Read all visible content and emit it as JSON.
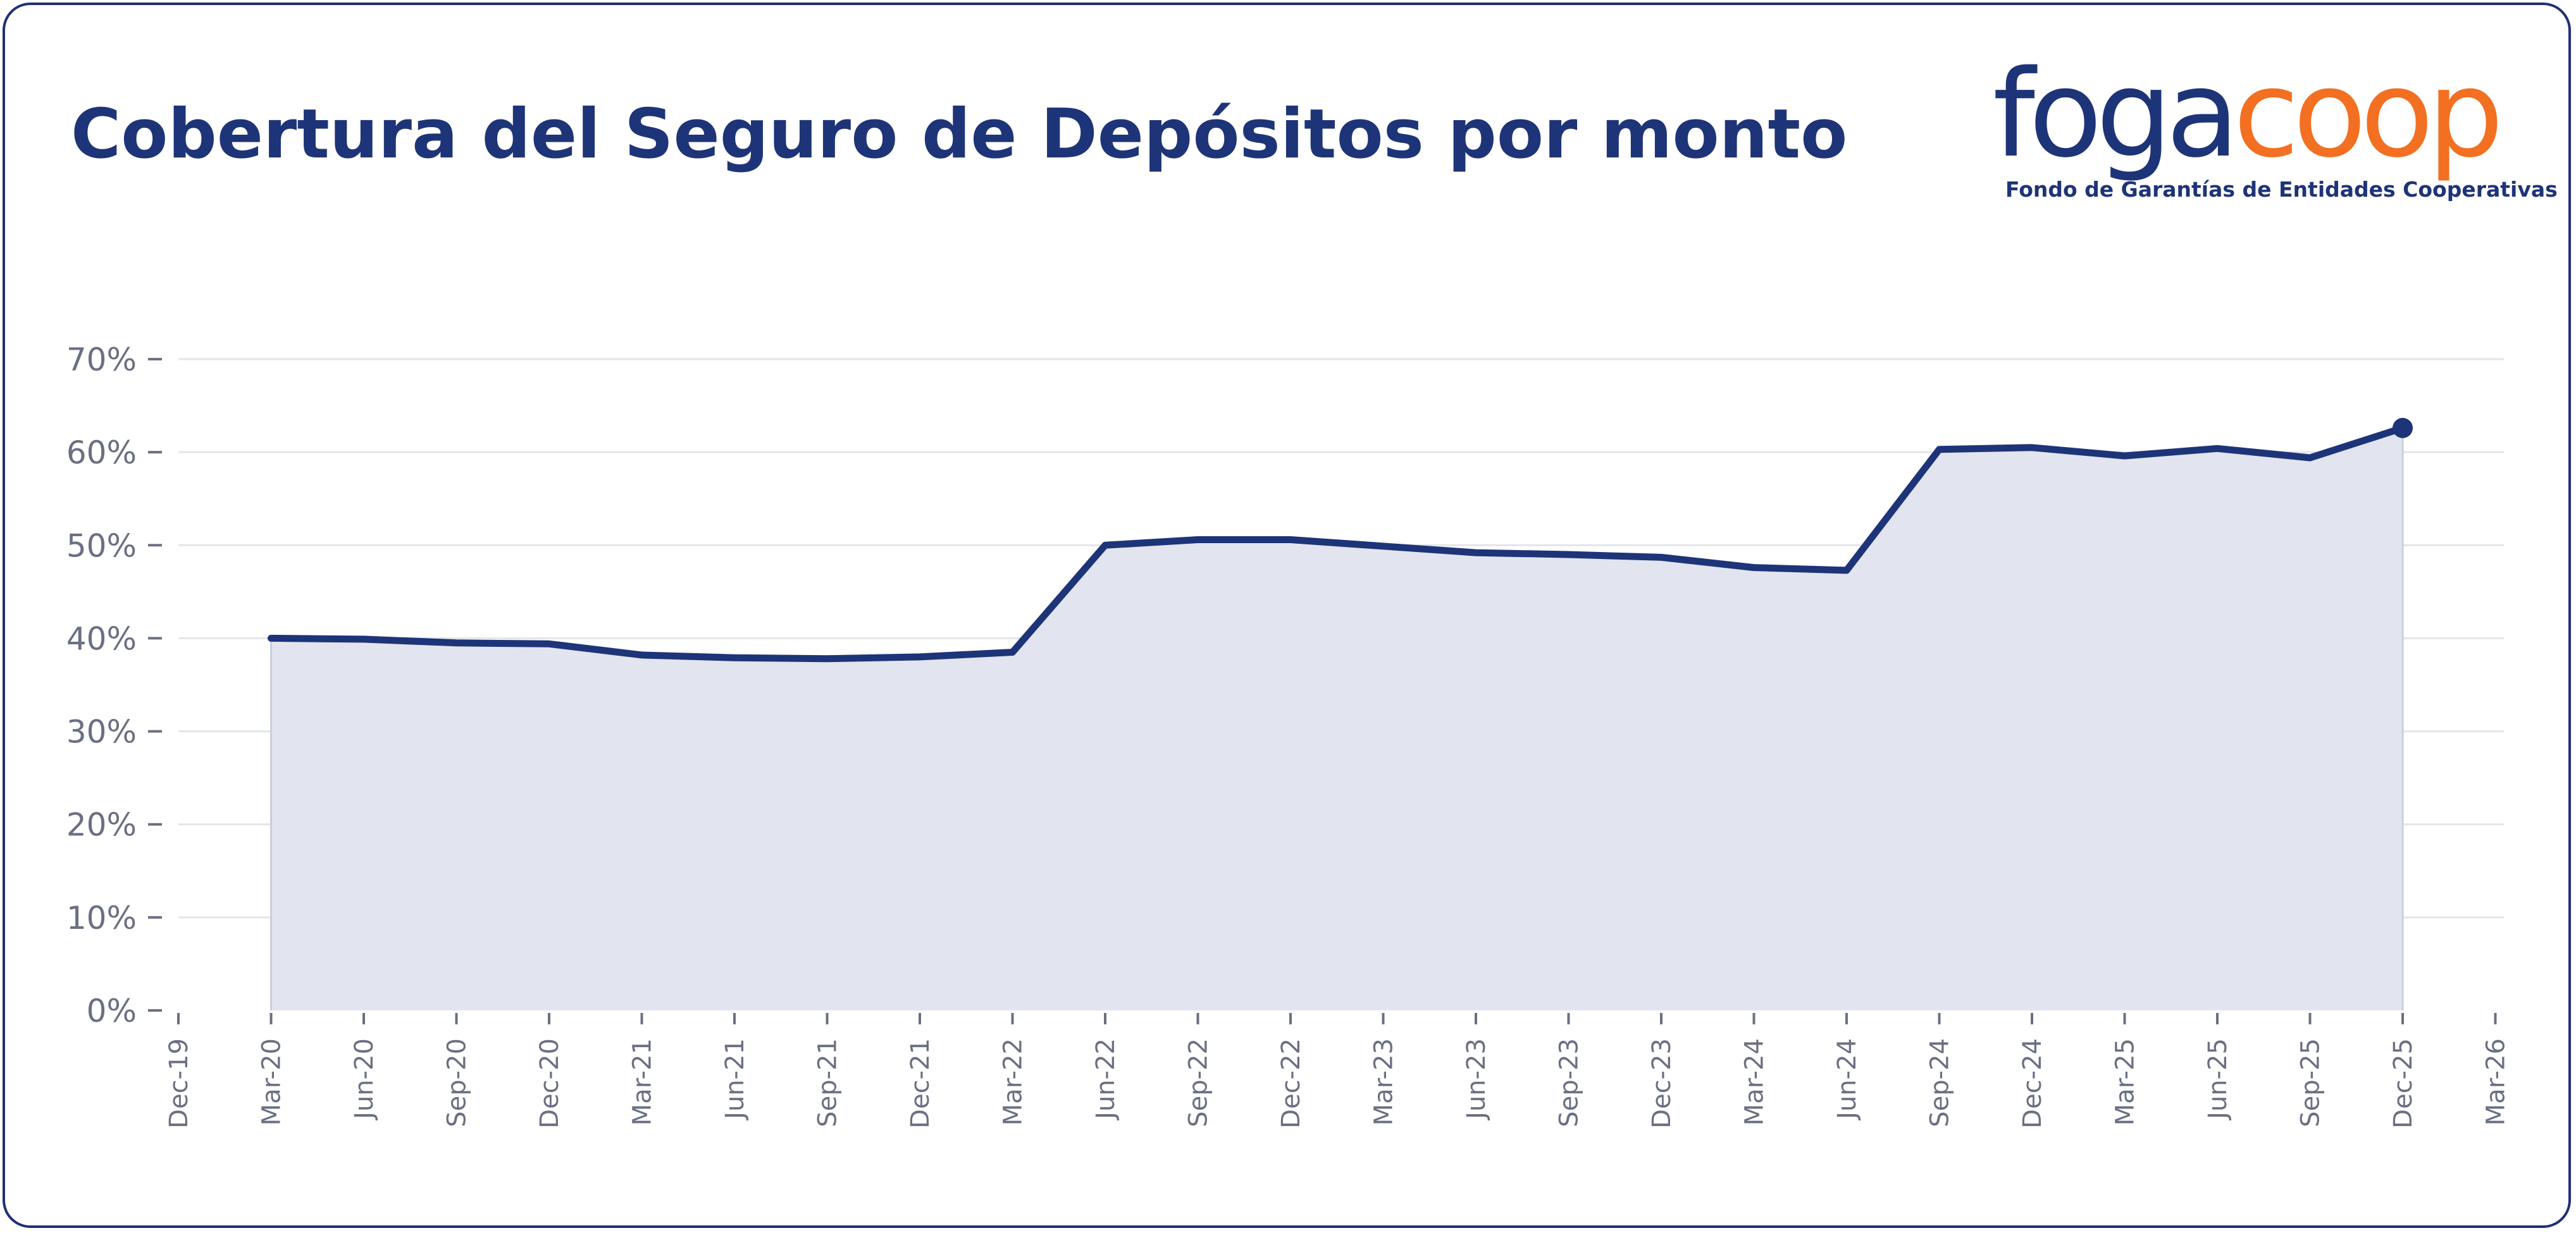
{
  "title": "Cobertura del Seguro de Depósitos por monto",
  "logo": {
    "word_part1": "foga",
    "word_part2": "coop",
    "subtitle": "Fondo de Garantías de Entidades Cooperativas"
  },
  "colors": {
    "line": "#1e3478",
    "fill": "#e2e5ef",
    "grid": "#e3e5ea",
    "axis_text": "#6b6f82",
    "logo_orange": "#f36f21",
    "border": "#1e2f78"
  },
  "chart_data": {
    "type": "area",
    "xlabel": "",
    "ylabel": "",
    "ylim": [
      0,
      70
    ],
    "yticks": [
      0,
      10,
      20,
      30,
      40,
      50,
      60,
      70
    ],
    "ytick_labels": [
      "0%",
      "10%",
      "20%",
      "30%",
      "40%",
      "50%",
      "60%",
      "70%"
    ],
    "xticks": [
      "Dec-19",
      "Mar-20",
      "Jun-20",
      "Sep-20",
      "Dec-20",
      "Mar-21",
      "Jun-21",
      "Sep-21",
      "Dec-21",
      "Mar-22",
      "Jun-22",
      "Sep-22",
      "Dec-22",
      "Mar-23",
      "Jun-23",
      "Sep-23",
      "Dec-23",
      "Mar-24",
      "Jun-24",
      "Sep-24",
      "Dec-24",
      "Mar-25",
      "Jun-25",
      "Sep-25",
      "Dec-25",
      "Mar-26"
    ],
    "grid": "horizontal",
    "legend": "none",
    "series": [
      {
        "x": [
          "Mar-20",
          "Jun-20",
          "Sep-20",
          "Dec-20",
          "Mar-21",
          "Jun-21",
          "Sep-21",
          "Dec-21",
          "Mar-22",
          "Jun-22",
          "Sep-22",
          "Dec-22",
          "Mar-23",
          "Jun-23",
          "Sep-23",
          "Dec-23",
          "Mar-24",
          "Jun-24",
          "Sep-24",
          "Dec-24",
          "Mar-25",
          "Jun-25",
          "Sep-25",
          "Dec-25"
        ],
        "values": [
          40.0,
          39.9,
          39.5,
          39.4,
          38.2,
          37.9,
          37.8,
          38.0,
          38.5,
          50.0,
          50.6,
          50.6,
          49.9,
          49.2,
          49.0,
          48.7,
          47.6,
          47.3,
          60.3,
          60.5,
          59.6,
          60.4,
          59.4,
          62.6
        ],
        "end_marker": true
      }
    ]
  }
}
